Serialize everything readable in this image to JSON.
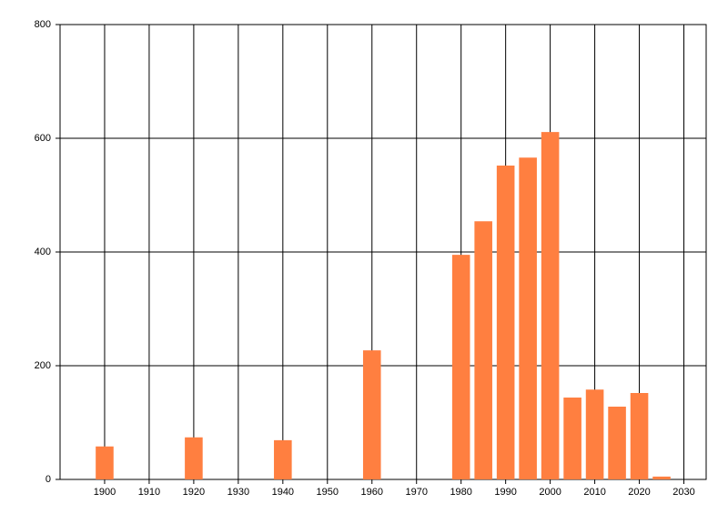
{
  "chart_data": {
    "type": "bar",
    "x": [
      1900,
      1920,
      1940,
      1960,
      1980,
      1985,
      1990,
      1995,
      2000,
      2005,
      2010,
      2015,
      2020,
      2025
    ],
    "values": [
      58,
      74,
      69,
      227,
      395,
      454,
      552,
      566,
      611,
      144,
      158,
      128,
      152,
      5
    ],
    "color": "#ff7f40",
    "xlim": [
      1890,
      2035
    ],
    "xticks": [
      1900,
      1910,
      1920,
      1930,
      1940,
      1950,
      1960,
      1970,
      1980,
      1990,
      2000,
      2010,
      2020,
      2030
    ],
    "ylim": [
      0,
      800
    ],
    "yticks": [
      0,
      200,
      400,
      600,
      800
    ],
    "grid": true
  }
}
